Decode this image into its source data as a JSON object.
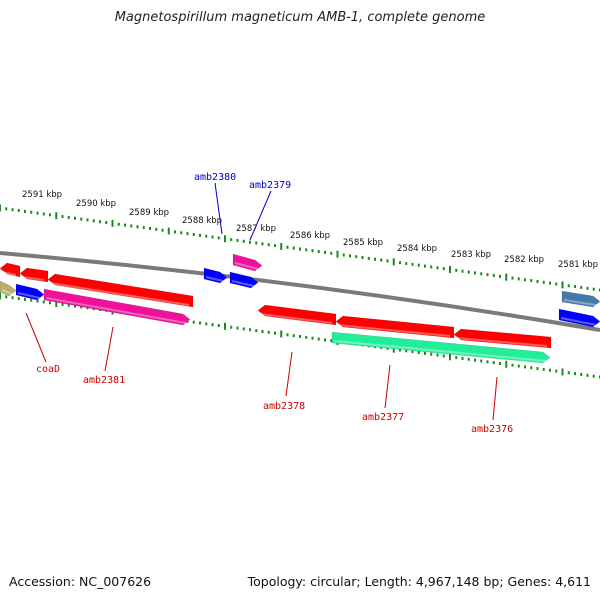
{
  "title": "Magnetospirillum magneticum AMB-1, complete genome",
  "footer": {
    "accession": "Accession: NC_007626",
    "summary": "Topology: circular; Length: 4,967,148 bp; Genes: 4,611"
  },
  "colors": {
    "backbone": "#7a7a7a",
    "tick": "#1a8a1a",
    "label_red": "#cc0000",
    "label_blue": "#0000cc"
  },
  "kbp_labels": [
    "2591 kbp",
    "2590 kbp",
    "2589 kbp",
    "2588 kbp",
    "2587 kbp",
    "2586 kbp",
    "2585 kbp",
    "2584 kbp",
    "2583 kbp",
    "2582 kbp",
    "2581 kbp"
  ],
  "gene_labels": [
    "coaD",
    "amb2381",
    "amb2380",
    "amb2379",
    "amb2378",
    "amb2377",
    "amb2376"
  ],
  "genes": [
    {
      "color": "#ff0000",
      "strand": "reverse"
    },
    {
      "color": "#ff0000",
      "strand": "reverse"
    },
    {
      "color": "#ff0000",
      "strand": "reverse"
    },
    {
      "color": "#b8b070",
      "strand": "forward"
    },
    {
      "color": "#0000ff",
      "strand": "forward"
    },
    {
      "color": "#ee1199",
      "strand": "forward"
    },
    {
      "color": "#0000ff",
      "strand": "forward"
    },
    {
      "color": "#0000ff",
      "strand": "forward"
    },
    {
      "color": "#ee1199",
      "strand": "forward"
    },
    {
      "color": "#ff0000",
      "strand": "reverse"
    },
    {
      "color": "#ff0000",
      "strand": "reverse"
    },
    {
      "color": "#ff0000",
      "strand": "reverse"
    },
    {
      "color": "#22ee99",
      "strand": "forward"
    },
    {
      "color": "#4477aa",
      "strand": "forward"
    },
    {
      "color": "#0000ff",
      "strand": "forward"
    }
  ]
}
